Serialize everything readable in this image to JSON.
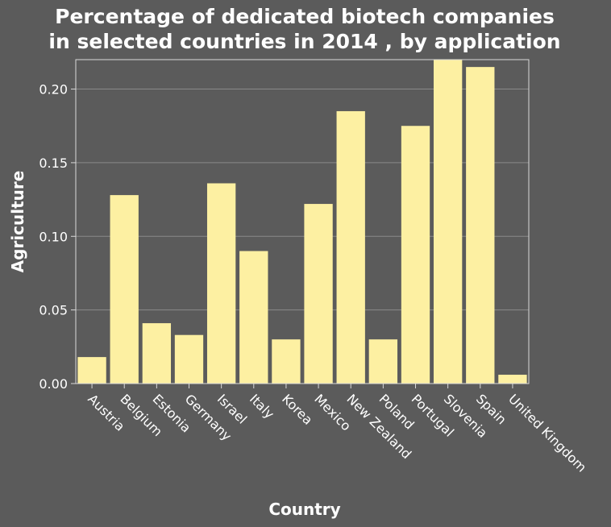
{
  "chart_data": {
    "type": "bar",
    "title_lines": [
      "Percentage of dedicated biotech companies",
      "in selected countries in 2014 , by application"
    ],
    "xlabel": "Country",
    "ylabel": "Agriculture",
    "ylim": [
      0,
      0.22
    ],
    "yticks": [
      "0.00",
      "0.05",
      "0.10",
      "0.15",
      "0.20"
    ],
    "ytick_values": [
      0,
      0.05,
      0.1,
      0.15,
      0.2
    ],
    "grid": true,
    "bar_color": "#fdf0a2",
    "background_color": "#5b5b5b",
    "categories": [
      "Austria",
      "Belgium",
      "Estonia",
      "Germany",
      "Israel",
      "Italy",
      "Korea",
      "Mexico",
      "New Zealand",
      "Poland",
      "Portugal",
      "Slovenia",
      "Spain",
      "United Kingdom"
    ],
    "values": [
      0.018,
      0.128,
      0.041,
      0.033,
      0.136,
      0.09,
      0.03,
      0.122,
      0.185,
      0.03,
      0.175,
      0.22,
      0.215,
      0.006
    ]
  }
}
